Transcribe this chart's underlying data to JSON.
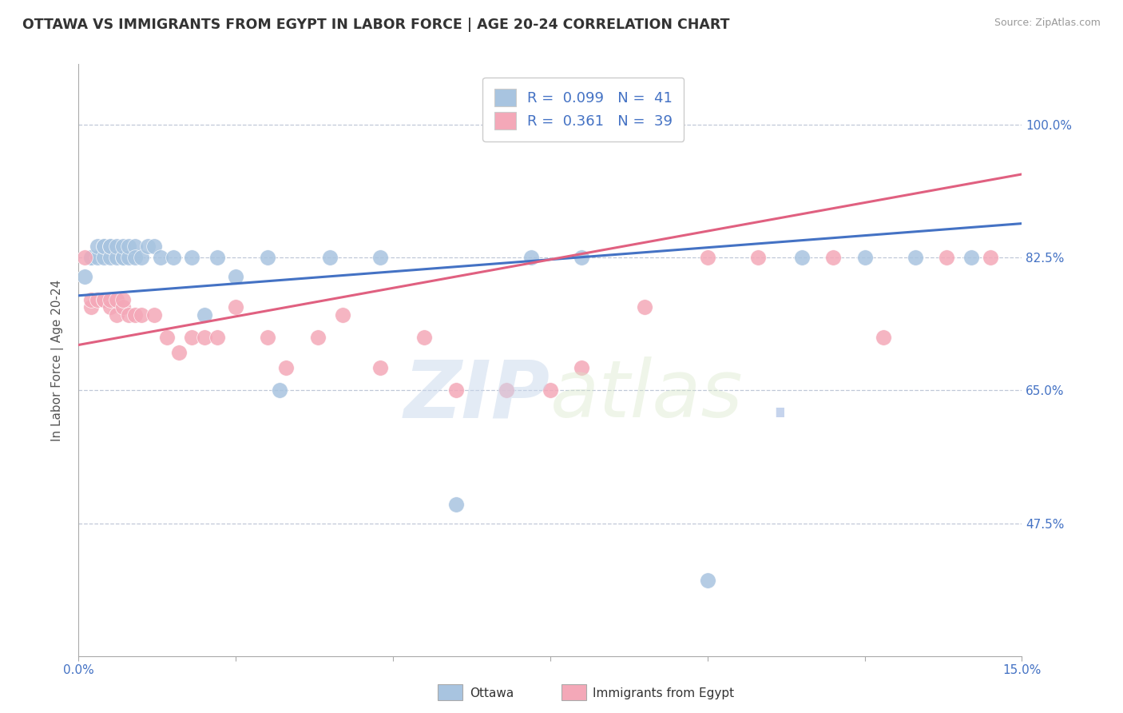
{
  "title": "OTTAWA VS IMMIGRANTS FROM EGYPT IN LABOR FORCE | AGE 20-24 CORRELATION CHART",
  "source": "Source: ZipAtlas.com",
  "ylabel": "In Labor Force | Age 20-24",
  "xlim": [
    0.0,
    0.15
  ],
  "ylim": [
    0.3,
    1.08
  ],
  "yticks": [
    0.475,
    0.65,
    0.825,
    1.0
  ],
  "ytick_labels": [
    "47.5%",
    "65.0%",
    "82.5%",
    "100.0%"
  ],
  "xticks": [
    0.0,
    0.025,
    0.05,
    0.075,
    0.1,
    0.125,
    0.15
  ],
  "xtick_labels": [
    "0.0%",
    "",
    "",
    "",
    "",
    "",
    "15.0%"
  ],
  "ottawa_R": 0.099,
  "ottawa_N": 41,
  "egypt_R": 0.361,
  "egypt_N": 39,
  "ottawa_color": "#a8c4e0",
  "egypt_color": "#f4a8b8",
  "ottawa_line_color": "#4472c4",
  "egypt_line_color": "#e06080",
  "watermark_zip": "ZIP",
  "watermark_atlas": "atlas",
  "ottawa_x": [
    0.001,
    0.002,
    0.002,
    0.003,
    0.003,
    0.004,
    0.004,
    0.004,
    0.005,
    0.005,
    0.005,
    0.006,
    0.006,
    0.007,
    0.007,
    0.007,
    0.008,
    0.008,
    0.009,
    0.009,
    0.01,
    0.011,
    0.012,
    0.013,
    0.015,
    0.018,
    0.02,
    0.022,
    0.025,
    0.03,
    0.032,
    0.04,
    0.048,
    0.06,
    0.072,
    0.08,
    0.1,
    0.115,
    0.125,
    0.133,
    0.142
  ],
  "ottawa_y": [
    0.8,
    0.825,
    0.825,
    0.825,
    0.84,
    0.825,
    0.84,
    0.84,
    0.825,
    0.84,
    0.84,
    0.825,
    0.84,
    0.825,
    0.825,
    0.84,
    0.825,
    0.84,
    0.84,
    0.825,
    0.825,
    0.84,
    0.84,
    0.825,
    0.825,
    0.825,
    0.75,
    0.825,
    0.8,
    0.825,
    0.65,
    0.825,
    0.825,
    0.5,
    0.825,
    0.825,
    0.4,
    0.825,
    0.825,
    0.825,
    0.825
  ],
  "egypt_x": [
    0.001,
    0.002,
    0.002,
    0.003,
    0.004,
    0.004,
    0.005,
    0.005,
    0.006,
    0.006,
    0.007,
    0.007,
    0.008,
    0.009,
    0.01,
    0.012,
    0.014,
    0.016,
    0.018,
    0.02,
    0.022,
    0.025,
    0.03,
    0.033,
    0.038,
    0.042,
    0.048,
    0.055,
    0.06,
    0.068,
    0.075,
    0.08,
    0.09,
    0.1,
    0.108,
    0.12,
    0.128,
    0.138,
    0.145
  ],
  "egypt_y": [
    0.825,
    0.76,
    0.77,
    0.77,
    0.77,
    0.77,
    0.76,
    0.77,
    0.75,
    0.77,
    0.76,
    0.77,
    0.75,
    0.75,
    0.75,
    0.75,
    0.72,
    0.7,
    0.72,
    0.72,
    0.72,
    0.76,
    0.72,
    0.68,
    0.72,
    0.75,
    0.68,
    0.72,
    0.65,
    0.65,
    0.65,
    0.68,
    0.76,
    0.825,
    0.825,
    0.825,
    0.72,
    0.825,
    0.825
  ]
}
